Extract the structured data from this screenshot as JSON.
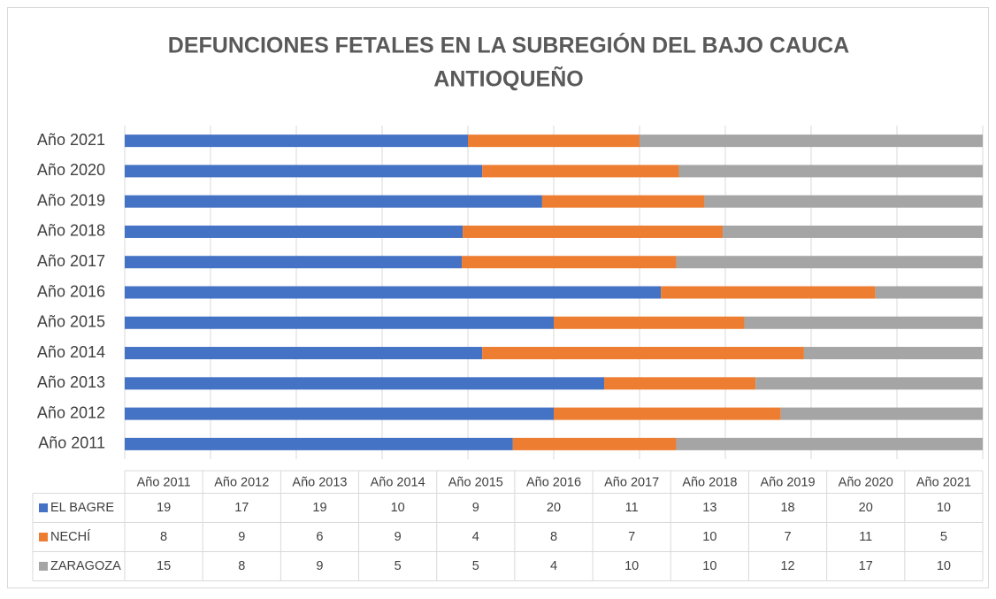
{
  "chart_data": {
    "type": "bar",
    "orientation": "horizontal",
    "stacking": "percent",
    "title": [
      "DEFUNCIONES FETALES EN LA SUBREGIÓN DEL BAJO CAUCA",
      "ANTIOQUEÑO"
    ],
    "categories": [
      "Año 2011",
      "Año 2012",
      "Año 2013",
      "Año 2014",
      "Año 2015",
      "Año 2016",
      "Año 2017",
      "Año 2018",
      "Año 2019",
      "Año 2020",
      "Año 2021"
    ],
    "series": [
      {
        "name": "EL BAGRE",
        "color": "#4472c4",
        "values": [
          19,
          17,
          19,
          10,
          9,
          20,
          11,
          13,
          18,
          20,
          10
        ]
      },
      {
        "name": "NECHÍ",
        "color": "#ed7d31",
        "values": [
          8,
          9,
          6,
          9,
          4,
          8,
          7,
          10,
          7,
          11,
          5
        ]
      },
      {
        "name": "ZARAGOZA",
        "color": "#a5a5a5",
        "values": [
          15,
          8,
          9,
          5,
          5,
          4,
          10,
          10,
          12,
          17,
          10
        ]
      }
    ],
    "xlim": [
      0,
      100
    ],
    "xticks": [
      0,
      10,
      20,
      30,
      40,
      50,
      60,
      70,
      80,
      90,
      100
    ],
    "grid": true,
    "data_table": true
  }
}
